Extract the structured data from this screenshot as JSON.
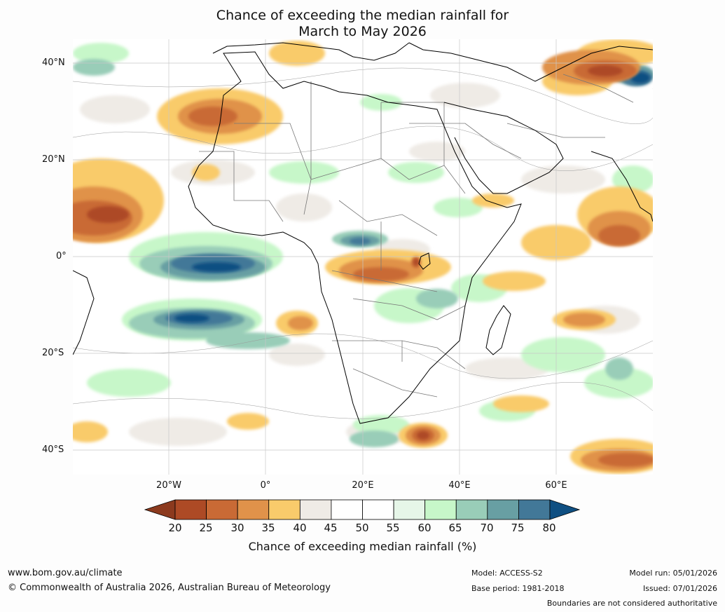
{
  "header": {
    "title_line1": "Chance of exceeding the median rainfall for",
    "title_line2": "March to May 2026"
  },
  "map": {
    "region": "Africa",
    "lat_labels": [
      "40°N",
      "20°N",
      "0°",
      "20°S",
      "40°S"
    ],
    "lon_labels": [
      "20°W",
      "0°",
      "20°E",
      "40°E",
      "60°E"
    ]
  },
  "colorbar": {
    "title": "Chance of exceeding median rainfall (%)",
    "ticks": [
      "20",
      "25",
      "30",
      "35",
      "40",
      "45",
      "50",
      "55",
      "60",
      "65",
      "70",
      "75",
      "80"
    ],
    "colors": [
      "#8c3a1e",
      "#ad4a25",
      "#c96a35",
      "#e0924a",
      "#f9cb6b",
      "#efebe6",
      "#ffffff",
      "#ffffff",
      "#e6f6e8",
      "#c7f7c9",
      "#99cdb8",
      "#689fa3",
      "#427898",
      "#0f4f82"
    ]
  },
  "footer": {
    "website": "www.bom.gov.au/climate",
    "copyright": "© Commonwealth of Australia 2026, Australian Bureau of Meteorology",
    "model": "Model: ACCESS-S2",
    "base_period": "Base period: 1981-2018",
    "model_run": "Model run: 05/01/2026",
    "issued": "Issued: 07/01/2026",
    "disclaimer": "Boundaries are not considered authoritative"
  }
}
